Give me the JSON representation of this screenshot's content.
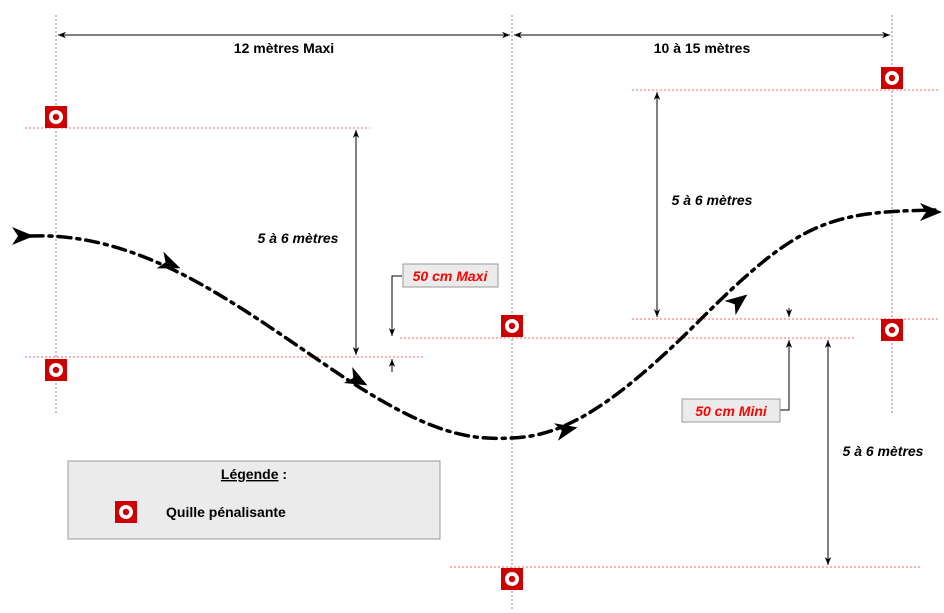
{
  "dimensions": {
    "first_span": "12 mètres Maxi",
    "second_span": "10 à 15 mètres",
    "left_lateral": "5 à 6 mètres",
    "right_upper_lateral": "5 à 6 mètres",
    "right_lower_lateral": "5 à 6 mètres"
  },
  "callouts": {
    "maxi": "50 cm Maxi",
    "mini": "50 cm Mini"
  },
  "legend": {
    "title": "Légende",
    "separator": " :",
    "item_label": "Quille pénalisante",
    "item_icon": "penalty-cone-icon"
  },
  "colors": {
    "cone_red": "#cc0000",
    "guide_red": "#ff6666",
    "callout_text": "#ff0000",
    "legend_bg": "#ebebeb"
  }
}
